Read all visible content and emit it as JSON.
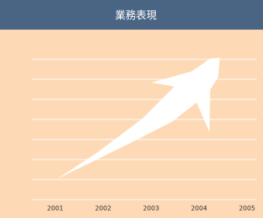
{
  "chart_data": {
    "type": "arrow",
    "title": "業務表現",
    "categories": [
      "2001",
      "2002",
      "2003",
      "2004",
      "2005"
    ],
    "grid": true
  }
}
